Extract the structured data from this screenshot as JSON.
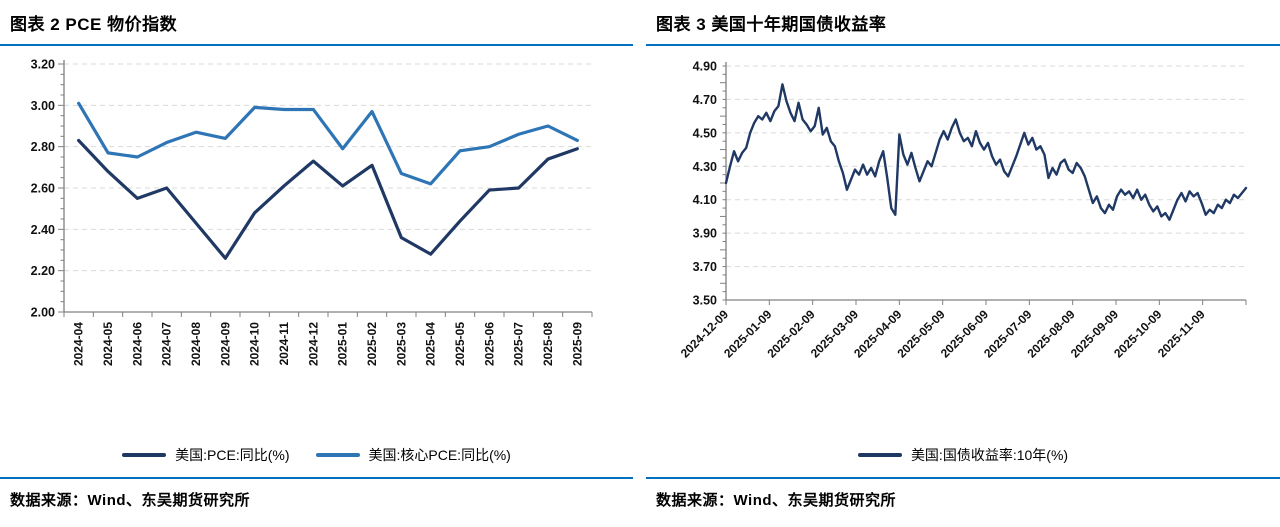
{
  "colors": {
    "accent_blue": "#0070C0",
    "dark_navy": "#1F3864",
    "light_blue": "#2E75B6",
    "grid": "#D9D9D9",
    "axis": "#808080",
    "label_text": "#111111"
  },
  "chart_data": [
    {
      "type": "line",
      "title": "图表 2  PCE 物价指数",
      "source": "数据来源：Wind、东吴期货研究所",
      "grid": "horizontal-dashed",
      "legend_position": "bottom",
      "ylim": [
        2.0,
        3.2
      ],
      "ytick_labels": [
        "3.20",
        "3.00",
        "2.80",
        "2.60",
        "2.40",
        "2.20",
        "2.00"
      ],
      "categories": [
        "2024-04",
        "2024-05",
        "2024-06",
        "2024-07",
        "2024-08",
        "2024-09",
        "2024-10",
        "2024-11",
        "2024-12",
        "2025-01",
        "2025-02",
        "2025-03",
        "2025-04",
        "2025-05",
        "2025-06",
        "2025-07",
        "2025-08",
        "2025-09"
      ],
      "series": [
        {
          "name": "美国:PCE:同比(%)",
          "color": "#1F3864",
          "values": [
            2.83,
            2.68,
            2.55,
            2.6,
            2.43,
            2.26,
            2.48,
            2.61,
            2.73,
            2.61,
            2.71,
            2.36,
            2.28,
            2.44,
            2.59,
            2.6,
            2.74,
            2.79
          ]
        },
        {
          "name": "美国:核心PCE:同比(%)",
          "color": "#2E75B6",
          "values": [
            3.01,
            2.77,
            2.75,
            2.82,
            2.87,
            2.84,
            2.99,
            2.98,
            2.98,
            2.79,
            2.97,
            2.67,
            2.62,
            2.78,
            2.8,
            2.86,
            2.9,
            2.83
          ]
        }
      ]
    },
    {
      "type": "line",
      "title": "图表 3  美国十年期国债收益率",
      "source": "数据来源：Wind、东吴期货研究所",
      "grid": "horizontal-dashed",
      "legend_position": "bottom",
      "ylim": [
        3.5,
        4.9
      ],
      "ytick_labels": [
        "4.90",
        "4.70",
        "4.50",
        "4.30",
        "4.10",
        "3.90",
        "3.70",
        "3.50"
      ],
      "x_tick_labels": [
        "2024-12-09",
        "2025-01-09",
        "2025-02-09",
        "2025-03-09",
        "2025-04-09",
        "2025-05-09",
        "2025-06-09",
        "2025-07-09",
        "2025-08-09",
        "2025-09-09",
        "2025-10-09",
        "2025-11-09"
      ],
      "series": [
        {
          "name": "美国:国债收益率:10年(%)",
          "color": "#1F3864",
          "values": [
            4.2,
            4.3,
            4.39,
            4.33,
            4.38,
            4.41,
            4.5,
            4.56,
            4.6,
            4.58,
            4.62,
            4.57,
            4.63,
            4.66,
            4.79,
            4.69,
            4.62,
            4.57,
            4.68,
            4.58,
            4.55,
            4.51,
            4.54,
            4.65,
            4.49,
            4.53,
            4.45,
            4.42,
            4.33,
            4.26,
            4.16,
            4.22,
            4.28,
            4.25,
            4.31,
            4.25,
            4.29,
            4.24,
            4.33,
            4.39,
            4.23,
            4.05,
            4.01,
            4.49,
            4.37,
            4.31,
            4.38,
            4.29,
            4.21,
            4.27,
            4.33,
            4.3,
            4.38,
            4.46,
            4.51,
            4.46,
            4.53,
            4.58,
            4.5,
            4.45,
            4.47,
            4.42,
            4.51,
            4.44,
            4.4,
            4.44,
            4.36,
            4.31,
            4.34,
            4.27,
            4.24,
            4.3,
            4.36,
            4.43,
            4.5,
            4.43,
            4.47,
            4.4,
            4.42,
            4.37,
            4.23,
            4.29,
            4.25,
            4.32,
            4.34,
            4.28,
            4.26,
            4.32,
            4.29,
            4.24,
            4.16,
            4.08,
            4.12,
            4.05,
            4.02,
            4.07,
            4.04,
            4.12,
            4.16,
            4.13,
            4.15,
            4.11,
            4.16,
            4.1,
            4.13,
            4.07,
            4.03,
            4.06,
            4.0,
            4.02,
            3.98,
            4.04,
            4.1,
            4.14,
            4.09,
            4.15,
            4.12,
            4.14,
            4.08,
            4.01,
            4.04,
            4.02,
            4.07,
            4.05,
            4.1,
            4.08,
            4.13,
            4.11,
            4.14,
            4.17
          ]
        }
      ]
    }
  ]
}
